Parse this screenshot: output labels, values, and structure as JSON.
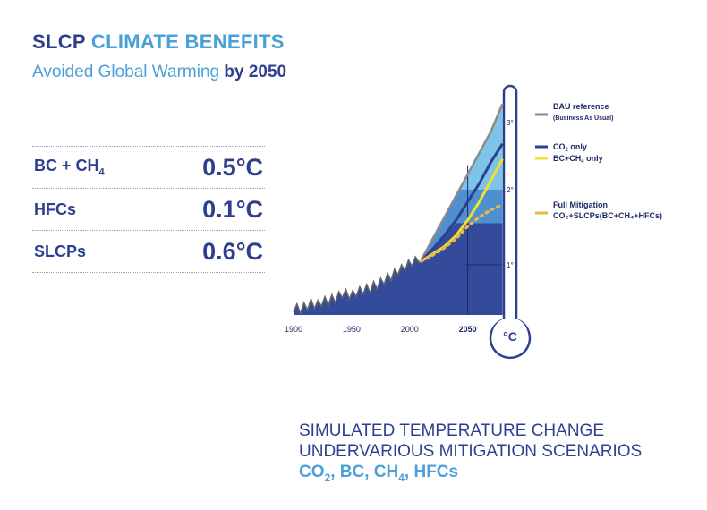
{
  "header": {
    "title_part1": "SLCP",
    "title_part2": "CLIMATE BENEFITS",
    "subtitle_part1": "Avoided Global Warming",
    "subtitle_part2": "by 2050"
  },
  "benefits": [
    {
      "label": "BC + CH",
      "label_sub": "4",
      "value": "0.5°C"
    },
    {
      "label": "HFCs",
      "label_sub": "",
      "value": "0.1°C"
    },
    {
      "label": "SLCPs",
      "label_sub": "",
      "value": "0.6°C"
    }
  ],
  "chart_data": {
    "type": "area",
    "x_ticks": [
      "1900",
      "1950",
      "2000",
      "2050"
    ],
    "y_ticks": [
      "1°",
      "2°",
      "3°"
    ],
    "unit_label": "°C",
    "xlim": [
      1900,
      2085
    ],
    "ylim": [
      0,
      3.6
    ],
    "colors": {
      "bau": "#8a8a8a",
      "co2": "#2f3f8f",
      "bc_ch4": "#f0e030",
      "full": "#e6b84a",
      "deep": "#344a9a",
      "mid": "#4e8fd0",
      "light": "#7ec4e8",
      "history": "#666666"
    },
    "legend": [
      {
        "key": "bau",
        "line1": "BAU reference",
        "line2": "(Business As Usual)"
      },
      {
        "key": "co2",
        "line1": "CO",
        "line1_sub": "2",
        "line1_tail": " only"
      },
      {
        "key": "bc_ch4",
        "line1": "BC+CH",
        "line1_sub": "4",
        "line1_tail": " only"
      },
      {
        "key": "full",
        "line1": "Full Mitigation",
        "line2": "CO₂+SLCPs(BC+CH₄+HFCs)"
      }
    ],
    "series": [
      {
        "key": "bau",
        "x": [
          2010,
          2020,
          2030,
          2040,
          2050,
          2060,
          2070,
          2080
        ],
        "y": [
          0.9,
          1.25,
          1.6,
          1.95,
          2.3,
          2.65,
          3.0,
          3.45
        ]
      },
      {
        "key": "co2",
        "x": [
          2010,
          2020,
          2030,
          2040,
          2050,
          2060,
          2070,
          2080
        ],
        "y": [
          0.88,
          1.08,
          1.3,
          1.55,
          1.85,
          2.15,
          2.5,
          2.8
        ]
      },
      {
        "key": "bc_ch4",
        "x": [
          2010,
          2020,
          2030,
          2040,
          2050,
          2060,
          2070,
          2080
        ],
        "y": [
          0.88,
          1.0,
          1.12,
          1.3,
          1.55,
          1.85,
          2.2,
          2.55
        ]
      },
      {
        "key": "full",
        "x": [
          2010,
          2020,
          2030,
          2040,
          2050,
          2060,
          2070,
          2080
        ],
        "y": [
          0.88,
          0.98,
          1.1,
          1.25,
          1.45,
          1.6,
          1.72,
          1.8
        ]
      }
    ],
    "history": {
      "x": [
        1900,
        1903,
        1906,
        1909,
        1912,
        1915,
        1918,
        1921,
        1924,
        1927,
        1930,
        1933,
        1936,
        1939,
        1942,
        1945,
        1948,
        1951,
        1954,
        1957,
        1960,
        1963,
        1966,
        1969,
        1972,
        1975,
        1978,
        1981,
        1984,
        1987,
        1990,
        1993,
        1996,
        1999,
        2002,
        2005,
        2008,
        2010
      ],
      "y": [
        0.05,
        0.18,
        0.02,
        0.2,
        0.08,
        0.26,
        0.1,
        0.24,
        0.14,
        0.3,
        0.16,
        0.33,
        0.2,
        0.38,
        0.28,
        0.42,
        0.26,
        0.4,
        0.3,
        0.46,
        0.34,
        0.5,
        0.36,
        0.55,
        0.42,
        0.6,
        0.5,
        0.68,
        0.56,
        0.75,
        0.66,
        0.82,
        0.72,
        0.9,
        0.8,
        0.95,
        0.86,
        0.9
      ]
    }
  },
  "caption": {
    "line1": "SIMULATED TEMPERATURE CHANGE",
    "line2": "UNDERVARIOUS MITIGATION SCENARIOS",
    "gases": [
      {
        "t": "CO",
        "s": "2",
        "sep": ", "
      },
      {
        "t": "BC",
        "s": "",
        "sep": ", "
      },
      {
        "t": "CH",
        "s": "4",
        "sep": ", "
      },
      {
        "t": "HFCs",
        "s": "",
        "sep": ""
      }
    ]
  }
}
